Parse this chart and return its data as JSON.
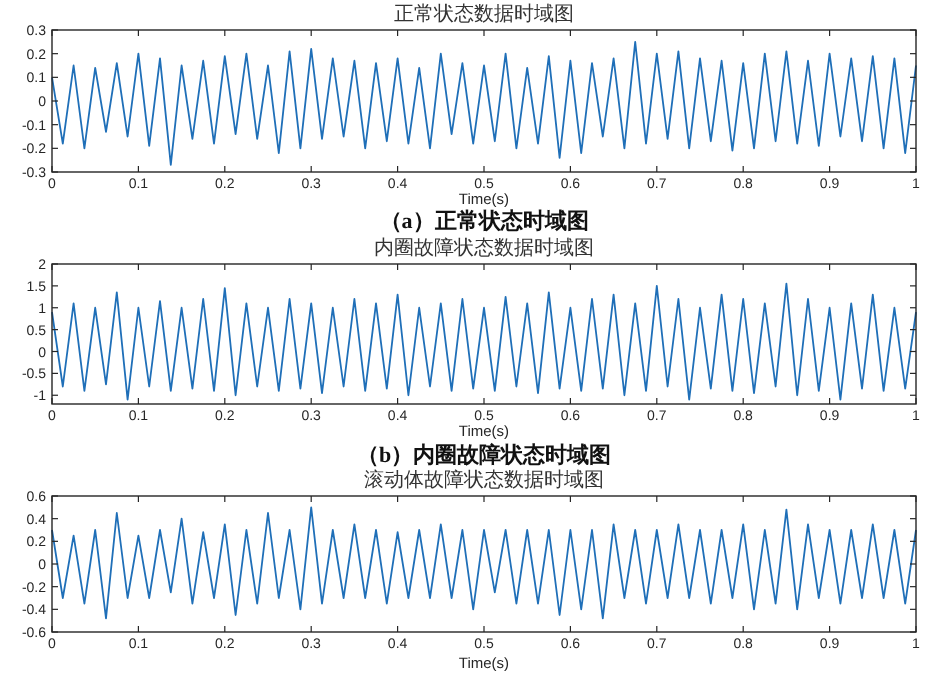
{
  "chart_data": [
    {
      "type": "line",
      "title": "正常状态数据时域图",
      "xlabel": "Time(s)",
      "annotations": [
        "（a）正常状态时域图"
      ],
      "color": "#1f6fb8",
      "x": [
        0,
        0.0125,
        0.025,
        0.0375,
        0.05,
        0.0625,
        0.075,
        0.0875,
        0.1,
        0.1125,
        0.125,
        0.1375,
        0.15,
        0.1625,
        0.175,
        0.1875,
        0.2,
        0.2125,
        0.225,
        0.2375,
        0.25,
        0.2625,
        0.275,
        0.2875,
        0.3,
        0.3125,
        0.325,
        0.3375,
        0.35,
        0.3625,
        0.375,
        0.3875,
        0.4,
        0.4125,
        0.425,
        0.4375,
        0.45,
        0.4625,
        0.475,
        0.4875,
        0.5,
        0.5125,
        0.525,
        0.5375,
        0.55,
        0.5625,
        0.575,
        0.5875,
        0.6,
        0.6125,
        0.625,
        0.6375,
        0.65,
        0.6625,
        0.675,
        0.6875,
        0.7,
        0.7125,
        0.725,
        0.7375,
        0.75,
        0.7625,
        0.775,
        0.7875,
        0.8,
        0.8125,
        0.825,
        0.8375,
        0.85,
        0.8625,
        0.875,
        0.8875,
        0.9,
        0.9125,
        0.925,
        0.9375,
        0.95,
        0.9625,
        0.975,
        0.9875,
        1
      ],
      "values": [
        0.1,
        -0.18,
        0.15,
        -0.2,
        0.14,
        -0.13,
        0.16,
        -0.15,
        0.2,
        -0.19,
        0.18,
        -0.27,
        0.15,
        -0.16,
        0.17,
        -0.18,
        0.19,
        -0.14,
        0.2,
        -0.16,
        0.15,
        -0.22,
        0.21,
        -0.2,
        0.22,
        -0.16,
        0.18,
        -0.15,
        0.17,
        -0.2,
        0.16,
        -0.17,
        0.18,
        -0.18,
        0.14,
        -0.2,
        0.2,
        -0.14,
        0.16,
        -0.18,
        0.15,
        -0.17,
        0.2,
        -0.2,
        0.14,
        -0.18,
        0.19,
        -0.24,
        0.17,
        -0.22,
        0.16,
        -0.15,
        0.18,
        -0.2,
        0.25,
        -0.18,
        0.2,
        -0.16,
        0.21,
        -0.2,
        0.18,
        -0.17,
        0.17,
        -0.21,
        0.16,
        -0.2,
        0.2,
        -0.17,
        0.21,
        -0.18,
        0.17,
        -0.19,
        0.2,
        -0.15,
        0.18,
        -0.17,
        0.19,
        -0.2,
        0.18,
        -0.22,
        0.15
      ],
      "xlim": [
        0,
        1
      ],
      "ylim": [
        -0.3,
        0.3
      ],
      "xticks": [
        0,
        0.1,
        0.2,
        0.3,
        0.4,
        0.5,
        0.6,
        0.7,
        0.8,
        0.9,
        1
      ],
      "yticks": [
        -0.3,
        -0.2,
        -0.1,
        0,
        0.1,
        0.2,
        0.3
      ]
    },
    {
      "type": "line",
      "title": "内圈故障状态数据时域图",
      "xlabel": "Time(s)",
      "annotations": [
        "（b）内圈故障状态时域图"
      ],
      "color": "#1f6fb8",
      "x": [
        0,
        0.0125,
        0.025,
        0.0375,
        0.05,
        0.0625,
        0.075,
        0.0875,
        0.1,
        0.1125,
        0.125,
        0.1375,
        0.15,
        0.1625,
        0.175,
        0.1875,
        0.2,
        0.2125,
        0.225,
        0.2375,
        0.25,
        0.2625,
        0.275,
        0.2875,
        0.3,
        0.3125,
        0.325,
        0.3375,
        0.35,
        0.3625,
        0.375,
        0.3875,
        0.4,
        0.4125,
        0.425,
        0.4375,
        0.45,
        0.4625,
        0.475,
        0.4875,
        0.5,
        0.5125,
        0.525,
        0.5375,
        0.55,
        0.5625,
        0.575,
        0.5875,
        0.6,
        0.6125,
        0.625,
        0.6375,
        0.65,
        0.6625,
        0.675,
        0.6875,
        0.7,
        0.7125,
        0.725,
        0.7375,
        0.75,
        0.7625,
        0.775,
        0.7875,
        0.8,
        0.8125,
        0.825,
        0.8375,
        0.85,
        0.8625,
        0.875,
        0.8875,
        0.9,
        0.9125,
        0.925,
        0.9375,
        0.95,
        0.9625,
        0.975,
        0.9875,
        1
      ],
      "values": [
        0.9,
        -0.8,
        1.1,
        -0.9,
        1.0,
        -0.75,
        1.35,
        -1.1,
        1.0,
        -0.8,
        1.15,
        -0.9,
        1.0,
        -0.85,
        1.2,
        -0.9,
        1.45,
        -1.0,
        1.1,
        -0.8,
        1.0,
        -0.9,
        1.2,
        -0.85,
        1.1,
        -0.95,
        1.0,
        -0.8,
        1.2,
        -0.9,
        1.1,
        -0.85,
        1.3,
        -1.0,
        1.0,
        -0.8,
        1.1,
        -0.9,
        1.2,
        -0.85,
        1.0,
        -0.9,
        1.25,
        -0.8,
        1.1,
        -0.95,
        1.35,
        -0.85,
        1.0,
        -0.9,
        1.2,
        -0.85,
        1.3,
        -1.0,
        1.1,
        -0.9,
        1.5,
        -0.8,
        1.2,
        -1.1,
        1.0,
        -0.85,
        1.3,
        -0.9,
        1.2,
        -0.95,
        1.1,
        -0.8,
        1.55,
        -1.0,
        1.2,
        -0.9,
        1.0,
        -1.1,
        1.1,
        -0.85,
        1.3,
        -0.9,
        1.0,
        -0.85,
        0.9
      ],
      "xlim": [
        0,
        1
      ],
      "ylim": [
        -1.2,
        2
      ],
      "xticks": [
        0,
        0.1,
        0.2,
        0.3,
        0.4,
        0.5,
        0.6,
        0.7,
        0.8,
        0.9,
        1
      ],
      "yticks": [
        -1,
        -0.5,
        0,
        0.5,
        1,
        1.5,
        2
      ]
    },
    {
      "type": "line",
      "title": "滚动体故障状态数据时域图",
      "xlabel": "Time(s)",
      "color": "#1f6fb8",
      "x": [
        0,
        0.0125,
        0.025,
        0.0375,
        0.05,
        0.0625,
        0.075,
        0.0875,
        0.1,
        0.1125,
        0.125,
        0.1375,
        0.15,
        0.1625,
        0.175,
        0.1875,
        0.2,
        0.2125,
        0.225,
        0.2375,
        0.25,
        0.2625,
        0.275,
        0.2875,
        0.3,
        0.3125,
        0.325,
        0.3375,
        0.35,
        0.3625,
        0.375,
        0.3875,
        0.4,
        0.4125,
        0.425,
        0.4375,
        0.45,
        0.4625,
        0.475,
        0.4875,
        0.5,
        0.5125,
        0.525,
        0.5375,
        0.55,
        0.5625,
        0.575,
        0.5875,
        0.6,
        0.6125,
        0.625,
        0.6375,
        0.65,
        0.6625,
        0.675,
        0.6875,
        0.7,
        0.7125,
        0.725,
        0.7375,
        0.75,
        0.7625,
        0.775,
        0.7875,
        0.8,
        0.8125,
        0.825,
        0.8375,
        0.85,
        0.8625,
        0.875,
        0.8875,
        0.9,
        0.9125,
        0.925,
        0.9375,
        0.95,
        0.9625,
        0.975,
        0.9875,
        1
      ],
      "values": [
        0.3,
        -0.3,
        0.25,
        -0.35,
        0.3,
        -0.48,
        0.45,
        -0.3,
        0.25,
        -0.3,
        0.3,
        -0.25,
        0.4,
        -0.35,
        0.28,
        -0.3,
        0.35,
        -0.45,
        0.3,
        -0.35,
        0.45,
        -0.3,
        0.3,
        -0.4,
        0.5,
        -0.35,
        0.3,
        -0.3,
        0.35,
        -0.3,
        0.3,
        -0.35,
        0.28,
        -0.3,
        0.3,
        -0.3,
        0.35,
        -0.3,
        0.3,
        -0.4,
        0.3,
        -0.25,
        0.3,
        -0.35,
        0.3,
        -0.35,
        0.3,
        -0.45,
        0.3,
        -0.4,
        0.3,
        -0.48,
        0.35,
        -0.3,
        0.3,
        -0.35,
        0.3,
        -0.3,
        0.35,
        -0.3,
        0.3,
        -0.35,
        0.3,
        -0.3,
        0.35,
        -0.4,
        0.3,
        -0.35,
        0.48,
        -0.4,
        0.35,
        -0.3,
        0.3,
        -0.35,
        0.3,
        -0.3,
        0.35,
        -0.3,
        0.3,
        -0.35,
        0.3
      ],
      "xlim": [
        0,
        1
      ],
      "ylim": [
        -0.6,
        0.6
      ],
      "xticks": [
        0,
        0.1,
        0.2,
        0.3,
        0.4,
        0.5,
        0.6,
        0.7,
        0.8,
        0.9,
        1
      ],
      "yticks": [
        -0.6,
        -0.4,
        -0.2,
        0,
        0.2,
        0.4,
        0.6
      ]
    }
  ]
}
